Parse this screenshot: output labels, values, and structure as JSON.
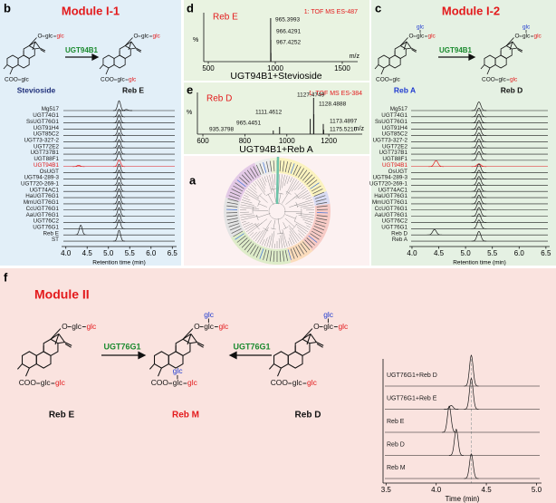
{
  "panel_labels": {
    "a": "a",
    "b": "b",
    "c": "c",
    "d": "d",
    "e": "e",
    "f": "f"
  },
  "chem": {
    "o": "O",
    "coo": "COO",
    "glc": "glc"
  },
  "module_i1": {
    "title": "Module I-1",
    "enzyme": "UGT94B1",
    "substrate": "Stevioside",
    "product": "Reb E",
    "chromatogram": {
      "x_label": "Retention time (min)",
      "xlim": [
        3.9,
        6.6
      ],
      "xticks": [
        {
          "value": 4,
          "label": "4.0"
        },
        4.5,
        {
          "value": 5,
          "label": "5.0"
        },
        5.5,
        {
          "value": 6,
          "label": "6.0"
        },
        6.5
      ],
      "trace_color": "#1a1a1a",
      "traces": [
        {
          "label": "Mg517",
          "peaks": [
            {
              "rt": 5.25,
              "h": 0.9
            },
            {
              "rt": 5.42,
              "h": 0.1
            }
          ]
        },
        {
          "label": "UGT74G1",
          "peaks": [
            {
              "rt": 5.25,
              "h": 0.7
            }
          ]
        },
        {
          "label": "SsUGT76G1",
          "peaks": [
            {
              "rt": 5.25,
              "h": 0.75
            }
          ]
        },
        {
          "label": "UGT91H4",
          "peaks": [
            {
              "rt": 5.25,
              "h": 0.8
            }
          ]
        },
        {
          "label": "UGT85C2",
          "peaks": [
            {
              "rt": 5.25,
              "h": 0.8
            }
          ]
        },
        {
          "label": "UGT73-327-2",
          "peaks": [
            {
              "rt": 5.25,
              "h": 0.8
            }
          ]
        },
        {
          "label": "UGT72E2",
          "peaks": [
            {
              "rt": 5.25,
              "h": 0.75
            }
          ]
        },
        {
          "label": "UGT737B1",
          "peaks": [
            {
              "rt": 5.25,
              "h": 0.8
            }
          ]
        },
        {
          "label": "UGT88F1",
          "peaks": [
            {
              "rt": 5.25,
              "h": 0.8
            }
          ]
        },
        {
          "label": "UGT94B1",
          "color": "#e31a1c",
          "peaks": [
            {
              "rt": 4.3,
              "h": 0.12
            },
            {
              "rt": 5.25,
              "h": 0.6
            }
          ]
        },
        {
          "label": "OsUGT",
          "peaks": [
            {
              "rt": 5.25,
              "h": 0.8
            }
          ]
        },
        {
          "label": "UGT94-289-3",
          "peaks": [
            {
              "rt": 5.25,
              "h": 0.8
            }
          ]
        },
        {
          "label": "UGT720-269-1",
          "peaks": [
            {
              "rt": 5.25,
              "h": 0.75
            }
          ]
        },
        {
          "label": "UGT74AC1",
          "peaks": [
            {
              "rt": 5.25,
              "h": 0.8
            }
          ]
        },
        {
          "label": "HaUGT76G1",
          "peaks": [
            {
              "rt": 5.25,
              "h": 0.8
            }
          ]
        },
        {
          "label": "MmUGT76G1",
          "peaks": [
            {
              "rt": 5.25,
              "h": 0.8
            }
          ]
        },
        {
          "label": "CcUGT76G1",
          "peaks": [
            {
              "rt": 5.25,
              "h": 0.8
            }
          ]
        },
        {
          "label": "AaUGT76G1",
          "peaks": [
            {
              "rt": 5.25,
              "h": 0.8
            }
          ]
        },
        {
          "label": "UGT76C2",
          "peaks": [
            {
              "rt": 5.25,
              "h": 0.8
            }
          ]
        },
        {
          "label": "UGT76G1",
          "peaks": [
            {
              "rt": 5.25,
              "h": 0.8
            }
          ]
        },
        {
          "label": "Reb E",
          "peaks": [
            {
              "rt": 4.35,
              "h": 0.9
            }
          ]
        },
        {
          "label": "ST",
          "peaks": [
            {
              "rt": 5.25,
              "h": 1.0
            }
          ]
        }
      ]
    }
  },
  "module_i2": {
    "title": "Module I-2",
    "enzyme": "UGT94B1",
    "substrate": "Reb A",
    "product": "Reb D",
    "chromatogram": {
      "x_label": "Retention time (min)",
      "xlim": [
        3.95,
        6.57
      ],
      "xticks": [
        {
          "value": 4,
          "label": "4.0"
        },
        4.5,
        {
          "value": 5,
          "label": "5.0"
        },
        5.5,
        {
          "value": 6,
          "label": "6.0"
        },
        6.5
      ],
      "trace_color": "#1a1a1a",
      "traces": [
        {
          "label": "Mg517",
          "peaks": [
            {
              "rt": 5.25,
              "h": 0.8
            }
          ]
        },
        {
          "label": "UGT74G1",
          "peaks": [
            {
              "rt": 5.25,
              "h": 0.8
            }
          ]
        },
        {
          "label": "SsUGT76G1",
          "peaks": [
            {
              "rt": 5.25,
              "h": 0.8
            }
          ]
        },
        {
          "label": "UGT91H4",
          "peaks": [
            {
              "rt": 5.25,
              "h": 0.8
            }
          ]
        },
        {
          "label": "UGT85C2",
          "peaks": [
            {
              "rt": 5.25,
              "h": 0.8
            }
          ]
        },
        {
          "label": "UGT73-327-2",
          "peaks": [
            {
              "rt": 5.25,
              "h": 0.8
            }
          ]
        },
        {
          "label": "UGT72E2",
          "peaks": [
            {
              "rt": 5.25,
              "h": 0.8
            }
          ]
        },
        {
          "label": "UGT737B1",
          "peaks": [
            {
              "rt": 5.25,
              "h": 0.8
            }
          ]
        },
        {
          "label": "UGT88F1",
          "peaks": [
            {
              "rt": 5.25,
              "h": 0.8
            }
          ]
        },
        {
          "label": "UGT94B1",
          "color": "#e31a1c",
          "peaks": [
            {
              "rt": 4.45,
              "h": 0.55
            },
            {
              "rt": 5.25,
              "h": 0.25
            }
          ]
        },
        {
          "label": "OsUGT",
          "peaks": [
            {
              "rt": 5.25,
              "h": 0.8
            }
          ]
        },
        {
          "label": "UGT94-289-3",
          "peaks": [
            {
              "rt": 5.25,
              "h": 0.8
            }
          ]
        },
        {
          "label": "UGT720-269-1",
          "peaks": [
            {
              "rt": 5.25,
              "h": 0.8
            }
          ]
        },
        {
          "label": "UGT74AC1",
          "peaks": [
            {
              "rt": 5.25,
              "h": 0.8
            }
          ]
        },
        {
          "label": "HaUGT76G1",
          "peaks": [
            {
              "rt": 5.25,
              "h": 0.8
            }
          ]
        },
        {
          "label": "MmUGT76G1",
          "peaks": [
            {
              "rt": 5.25,
              "h": 0.8
            }
          ]
        },
        {
          "label": "CcUGT76G1",
          "peaks": [
            {
              "rt": 5.25,
              "h": 0.8
            }
          ]
        },
        {
          "label": "AaUGT76G1",
          "peaks": [
            {
              "rt": 5.25,
              "h": 0.8
            }
          ]
        },
        {
          "label": "UGT76C2",
          "peaks": [
            {
              "rt": 5.25,
              "h": 0.8
            }
          ]
        },
        {
          "label": "UGT76G1",
          "peaks": [
            {
              "rt": 5.25,
              "h": 0.8
            }
          ]
        },
        {
          "label": "Reb D",
          "peaks": [
            {
              "rt": 4.42,
              "h": 0.5
            }
          ]
        },
        {
          "label": "Reb A",
          "peaks": [
            {
              "rt": 5.25,
              "h": 0.9
            }
          ]
        }
      ]
    }
  },
  "ms_d": {
    "sample": "Reb E",
    "mode": "1: TOF MS ES-487",
    "y_label": "%",
    "x_label": "m/z",
    "caption": "UGT94B1+Stevioside",
    "xlim": [
      466,
      1615
    ],
    "xticks": [
      500,
      1000,
      1500
    ],
    "color": "#1a1a1a",
    "peaks": [
      {
        "mz": 965.3993,
        "intensity": 1.0
      },
      {
        "mz": 966.4291,
        "intensity": 0.5
      },
      {
        "mz": 967.4252,
        "intensity": 0.2
      }
    ]
  },
  "ms_e": {
    "sample": "Reb D",
    "mode": "1: TOF MS ES-384",
    "y_label": "%",
    "x_label": "m/z",
    "caption": "UGT94B1+Reb A",
    "xlim": [
      574,
      1359
    ],
    "xticks": [
      600,
      800,
      1000,
      1200
    ],
    "color": "#1a1a1a",
    "peaks": [
      {
        "mz": 1127.4749,
        "intensity": 1.0
      },
      {
        "mz": 1128.4888,
        "intensity": 0.55
      },
      {
        "mz": 1111.4612,
        "intensity": 0.42
      },
      {
        "mz": 965.4451,
        "intensity": 0.2
      },
      {
        "mz": 935.3798,
        "intensity": 0.1
      },
      {
        "mz": 1173.4897,
        "intensity": 0.28
      },
      {
        "mz": 1175.521,
        "label": "1175.5210",
        "intensity": 0.12
      }
    ]
  },
  "module_ii": {
    "title": "Module II",
    "enzyme": "UGT76G1",
    "substrates": [
      "Reb E",
      "Reb D"
    ],
    "product": "Reb M",
    "chromatogram": {
      "x_label": "Time (min)",
      "xlim": [
        3.47,
        5.05
      ],
      "xticks": [
        3.5,
        {
          "value": 4,
          "label": "4.0"
        },
        4.5,
        {
          "value": 5,
          "label": "5.0"
        }
      ],
      "reference_rt": 4.35,
      "trace_color": "#1a1a1a",
      "traces": [
        {
          "label": "UGT76G1+Reb D",
          "peaks": [
            {
              "rt": 4.35,
              "h": 1.0
            }
          ]
        },
        {
          "label": "UGT76G1+Reb E",
          "peaks": [
            {
              "rt": 4.15,
              "h": 0.12
            },
            {
              "rt": 4.35,
              "h": 1.0
            }
          ]
        },
        {
          "label": "Reb E",
          "peaks": [
            {
              "rt": 4.13,
              "h": 0.85
            }
          ]
        },
        {
          "label": "Reb D",
          "peaks": [
            {
              "rt": 4.2,
              "h": 0.85
            }
          ]
        },
        {
          "label": "Reb M",
          "peaks": [
            {
              "rt": 4.35,
              "h": 0.8
            }
          ]
        }
      ]
    }
  }
}
